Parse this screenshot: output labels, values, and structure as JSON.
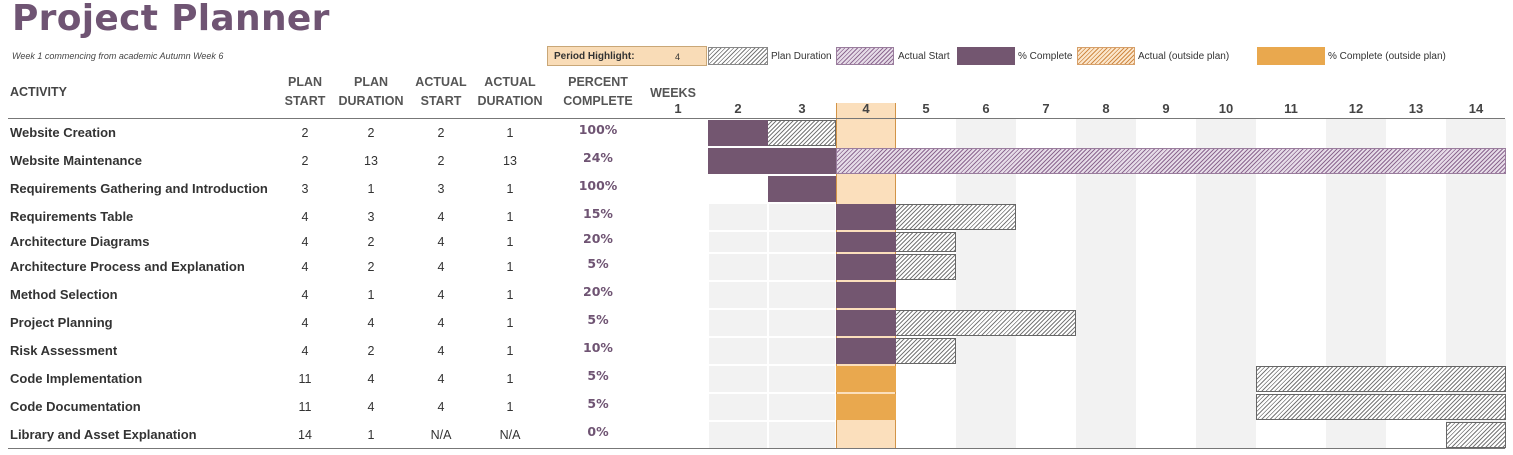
{
  "title": "Project Planner",
  "subtitle": "Week 1 commencing from academic Autumn Week 6",
  "period_highlight": {
    "label": "Period Highlight:",
    "value": "4"
  },
  "legend": {
    "plan_duration": "Plan Duration",
    "actual_start": "Actual Start",
    "percent_complete": "% Complete",
    "actual_outside": "Actual (outside plan)",
    "percent_outside": "% Complete (outside plan)"
  },
  "headers": {
    "activity": "ACTIVITY",
    "plan_start": [
      "PLAN",
      "START"
    ],
    "plan_duration": [
      "PLAN",
      "DURATION"
    ],
    "actual_start": [
      "ACTUAL",
      "START"
    ],
    "actual_duration": [
      "ACTUAL",
      "DURATION"
    ],
    "percent_complete": [
      "PERCENT",
      "COMPLETE"
    ],
    "weeks": "WEEKS"
  },
  "weeks": [
    "1",
    "2",
    "3",
    "4",
    "5",
    "6",
    "7",
    "8",
    "9",
    "10",
    "11",
    "12",
    "13",
    "14"
  ],
  "colors": {
    "accent": "#6f5473",
    "complete": "#735670",
    "outside_complete": "#e9a84e",
    "highlight": "#fbdfbc"
  },
  "activities": [
    {
      "name": "Website Creation",
      "plan_start": "2",
      "plan_duration": "2",
      "actual_start": "2",
      "actual_duration": "1",
      "percent": "100%"
    },
    {
      "name": "Website Maintenance",
      "plan_start": "2",
      "plan_duration": "13",
      "actual_start": "2",
      "actual_duration": "13",
      "percent": "24%"
    },
    {
      "name": "Requirements Gathering and Introduction",
      "plan_start": "3",
      "plan_duration": "1",
      "actual_start": "3",
      "actual_duration": "1",
      "percent": "100%"
    },
    {
      "name": "Requirements Table",
      "plan_start": "4",
      "plan_duration": "3",
      "actual_start": "4",
      "actual_duration": "1",
      "percent": "15%"
    },
    {
      "name": "Architecture Diagrams",
      "plan_start": "4",
      "plan_duration": "2",
      "actual_start": "4",
      "actual_duration": "1",
      "percent": "20%"
    },
    {
      "name": "Architecture Process and Explanation",
      "plan_start": "4",
      "plan_duration": "2",
      "actual_start": "4",
      "actual_duration": "1",
      "percent": "5%"
    },
    {
      "name": "Method Selection",
      "plan_start": "4",
      "plan_duration": "1",
      "actual_start": "4",
      "actual_duration": "1",
      "percent": "20%"
    },
    {
      "name": "Project Planning",
      "plan_start": "4",
      "plan_duration": "4",
      "actual_start": "4",
      "actual_duration": "1",
      "percent": "5%"
    },
    {
      "name": "Risk Assessment",
      "plan_start": "4",
      "plan_duration": "2",
      "actual_start": "4",
      "actual_duration": "1",
      "percent": "10%"
    },
    {
      "name": "Code Implementation",
      "plan_start": "11",
      "plan_duration": "4",
      "actual_start": "4",
      "actual_duration": "1",
      "percent": "5%"
    },
    {
      "name": "Code Documentation",
      "plan_start": "11",
      "plan_duration": "4",
      "actual_start": "4",
      "actual_duration": "1",
      "percent": "5%"
    },
    {
      "name": "Library and Asset Explanation",
      "plan_start": "14",
      "plan_duration": "1",
      "actual_start": "N/A",
      "actual_duration": "N/A",
      "percent": "0%"
    }
  ]
}
